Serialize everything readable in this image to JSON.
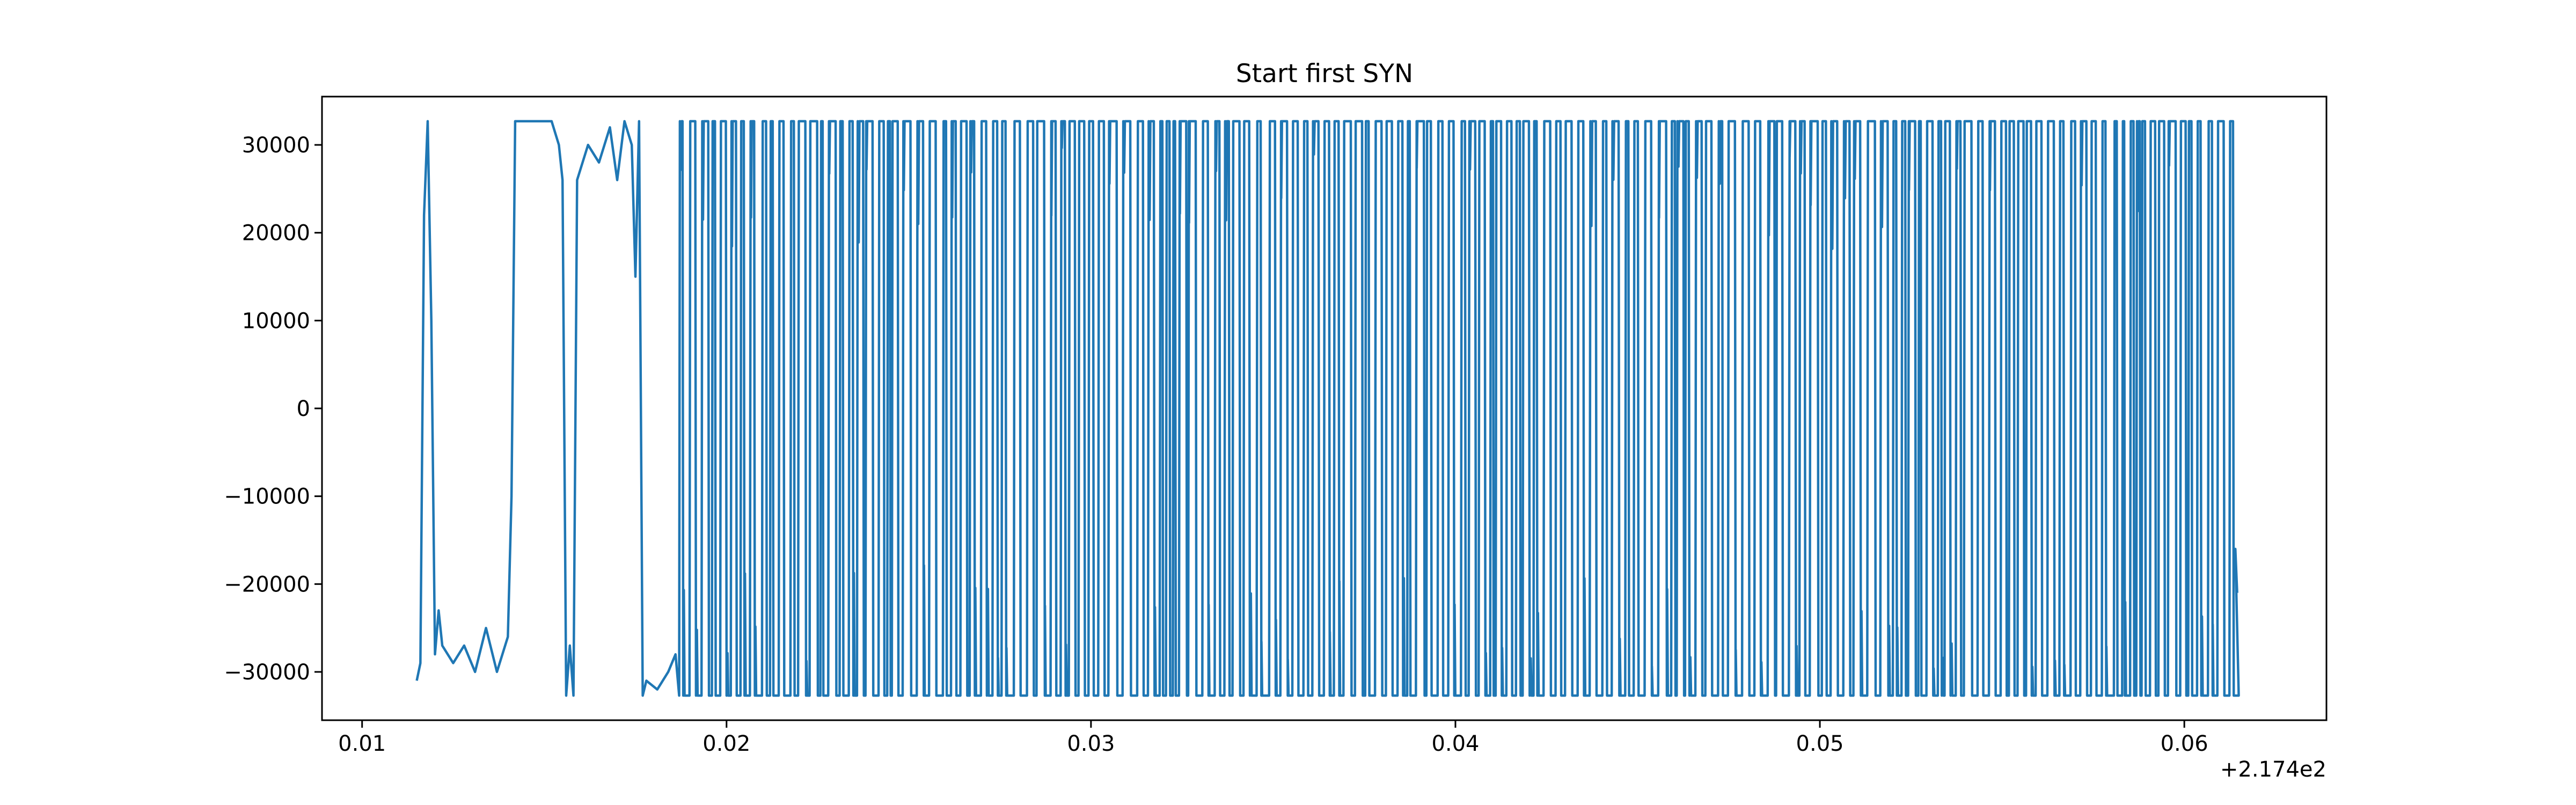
{
  "chart_data": {
    "type": "line",
    "title": "Start first SYN",
    "xlabel": "",
    "ylabel": "",
    "x_offset_label": "+2.174e2",
    "x_offset": 217.4,
    "xlim": [
      0.0089,
      0.0639
    ],
    "ylim": [
      -35500,
      35500
    ],
    "x_ticks": [
      0.01,
      0.02,
      0.03,
      0.04,
      0.05,
      0.06
    ],
    "x_tick_labels": [
      "0.01",
      "0.02",
      "0.03",
      "0.04",
      "0.05",
      "0.06"
    ],
    "y_ticks": [
      30000,
      20000,
      10000,
      0,
      -10000,
      -20000,
      -30000
    ],
    "y_tick_labels": [
      "30000",
      "20000",
      "10000",
      "0",
      "−10000",
      "−20000",
      "−30000"
    ],
    "grid": false,
    "line_color": "#1f77b4",
    "series": [
      {
        "x": [
          0.0115,
          0.0116,
          0.0117,
          0.0118,
          0.0119,
          0.012,
          0.0121,
          0.0122,
          0.0125,
          0.0128,
          0.0131,
          0.0134,
          0.0137,
          0.014,
          0.0141,
          0.0142,
          0.0143,
          0.0148,
          0.015,
          0.0152,
          0.0154,
          0.0155,
          0.0156,
          0.0157,
          0.0158,
          0.0159,
          0.0162,
          0.0165,
          0.0168,
          0.017,
          0.0172,
          0.0174,
          0.0175,
          0.0176,
          0.0177,
          0.0178,
          0.0181,
          0.0184,
          0.0186,
          0.0187
        ],
        "y": [
          -31000,
          -29000,
          22000,
          32700,
          10000,
          -28000,
          -23000,
          -27000,
          -29000,
          -27000,
          -30000,
          -25000,
          -30000,
          -26000,
          -10000,
          32700,
          32700,
          32700,
          32700,
          32700,
          30000,
          26000,
          -32700,
          -27000,
          -32700,
          26000,
          30000,
          28000,
          32000,
          26000,
          32700,
          30000,
          15000,
          32700,
          -32700,
          -31000,
          -32000,
          -30000,
          -28000,
          -32700
        ]
      }
    ]
  }
}
